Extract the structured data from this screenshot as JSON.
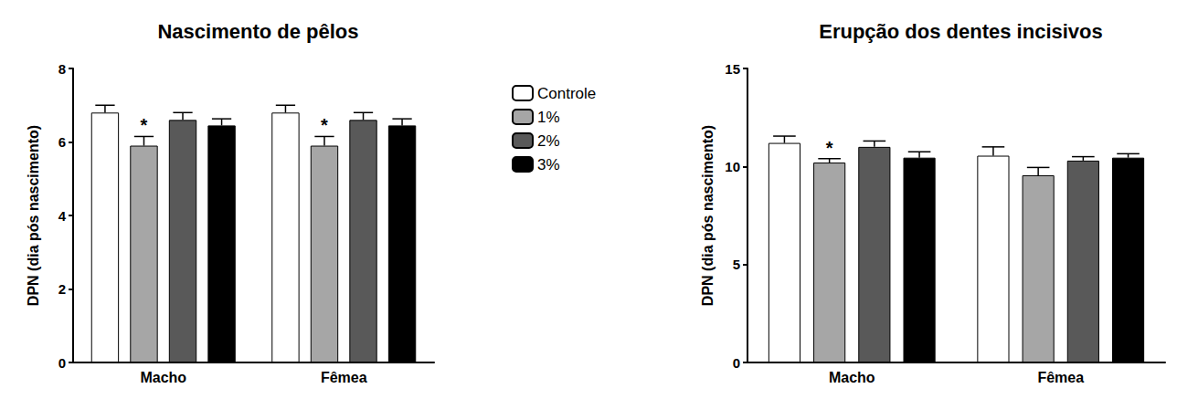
{
  "chart_data": [
    {
      "type": "bar",
      "title": "Nascimento de pêlos",
      "y_label": "DPN (dia pós nascimento)",
      "categories": [
        "Macho",
        "Fêmea"
      ],
      "series": [
        {
          "name": "Controle",
          "color": "#ffffff",
          "values": [
            6.8,
            6.8
          ],
          "errors": [
            0.2,
            0.2
          ],
          "annotations": [
            null,
            null
          ]
        },
        {
          "name": "1%",
          "color": "#a6a6a6",
          "values": [
            5.9,
            5.9
          ],
          "errors": [
            0.25,
            0.25
          ],
          "annotations": [
            "*",
            "*"
          ]
        },
        {
          "name": "2%",
          "color": "#595959",
          "values": [
            6.6,
            6.6
          ],
          "errors": [
            0.2,
            0.2
          ],
          "annotations": [
            null,
            null
          ]
        },
        {
          "name": "3%",
          "color": "#000000",
          "values": [
            6.45,
            6.45
          ],
          "errors": [
            0.18,
            0.18
          ],
          "annotations": [
            null,
            null
          ]
        }
      ],
      "ylim": [
        0,
        8
      ],
      "yticks": [
        0,
        2,
        4,
        6,
        8
      ],
      "grid": false,
      "legend": "right"
    },
    {
      "type": "bar",
      "title": "Erupção dos dentes incisivos",
      "y_label": "DPN (dia pós nascimento)",
      "categories": [
        "Macho",
        "Fêmea"
      ],
      "series": [
        {
          "name": "Controle",
          "color": "#ffffff",
          "values": [
            11.2,
            10.55
          ],
          "errors": [
            0.35,
            0.45
          ],
          "annotations": [
            null,
            null
          ]
        },
        {
          "name": "1%",
          "color": "#a6a6a6",
          "values": [
            10.2,
            9.55
          ],
          "errors": [
            0.2,
            0.4
          ],
          "annotations": [
            "*",
            null
          ]
        },
        {
          "name": "2%",
          "color": "#595959",
          "values": [
            11.0,
            10.3
          ],
          "errors": [
            0.3,
            0.2
          ],
          "annotations": [
            null,
            null
          ]
        },
        {
          "name": "3%",
          "color": "#000000",
          "values": [
            10.45,
            10.45
          ],
          "errors": [
            0.3,
            0.2
          ],
          "annotations": [
            null,
            null
          ]
        }
      ],
      "ylim": [
        0,
        15
      ],
      "yticks": [
        0,
        5,
        10,
        15
      ],
      "grid": false
    }
  ]
}
